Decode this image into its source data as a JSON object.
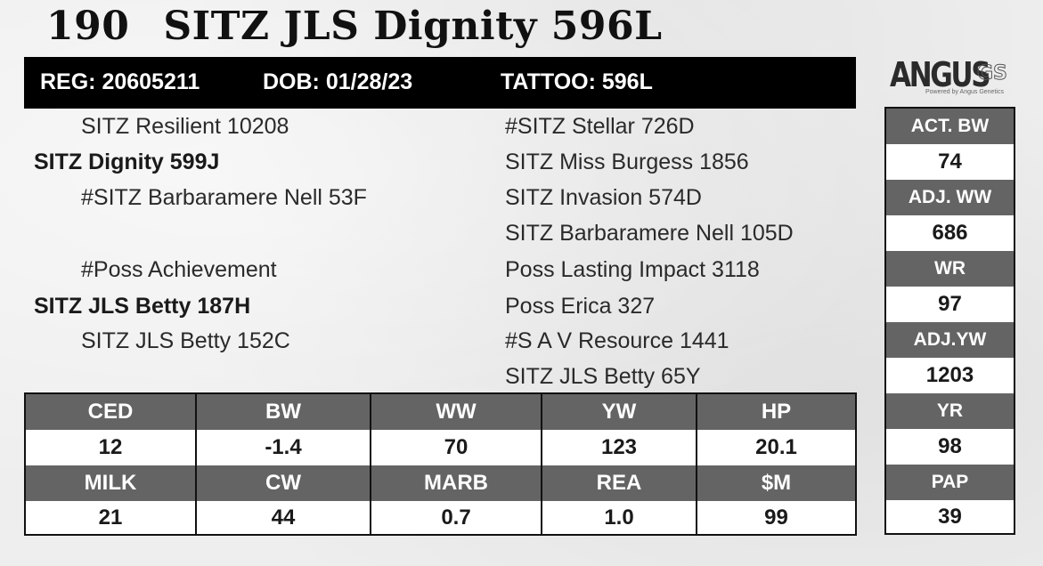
{
  "header": {
    "lot_number": "190",
    "animal_name": "SITZ JLS Dignity 596L",
    "reg": "REG: 20605211",
    "dob": "DOB: 01/28/23",
    "tattoo": "TATTOO: 596L"
  },
  "logo": {
    "word": "ANGUS",
    "suffix": "GS",
    "tagline": "Powered by Angus Genetics"
  },
  "pedigree": {
    "sire_sire": "SITZ Resilient 10208",
    "sire": "SITZ Dignity 599J",
    "sire_dam": "#SITZ Barbaramere Nell 53F",
    "dam_sire": "#Poss Achievement",
    "dam": "SITZ JLS Betty 187H",
    "dam_dam": "SITZ JLS Betty 152C",
    "gg": [
      "#SITZ Stellar 726D",
      "SITZ Miss Burgess 1856",
      "SITZ Invasion 574D",
      "SITZ Barbaramere Nell 105D",
      "Poss Lasting Impact 3118",
      "Poss Erica 327",
      "#S A V Resource 1441",
      "SITZ JLS Betty 65Y"
    ]
  },
  "performance": [
    {
      "label": "ACT. BW",
      "value": "74"
    },
    {
      "label": "ADJ. WW",
      "value": "686"
    },
    {
      "label": "WR",
      "value": "97"
    },
    {
      "label": "ADJ.YW",
      "value": "1203"
    },
    {
      "label": "YR",
      "value": "98"
    },
    {
      "label": "PAP",
      "value": "39"
    }
  ],
  "epds": {
    "row1": [
      {
        "label": "CED",
        "value": "12"
      },
      {
        "label": "BW",
        "value": "-1.4"
      },
      {
        "label": "WW",
        "value": "70"
      },
      {
        "label": "YW",
        "value": "123"
      },
      {
        "label": "HP",
        "value": "20.1"
      }
    ],
    "row2": [
      {
        "label": "MILK",
        "value": "21"
      },
      {
        "label": "CW",
        "value": "44"
      },
      {
        "label": "MARB",
        "value": "0.7"
      },
      {
        "label": "REA",
        "value": "1.0"
      },
      {
        "label": "$M",
        "value": "99"
      }
    ]
  },
  "colors": {
    "header_bar": "#000000",
    "cell_header": "#646464",
    "background": "#eeeeee"
  }
}
